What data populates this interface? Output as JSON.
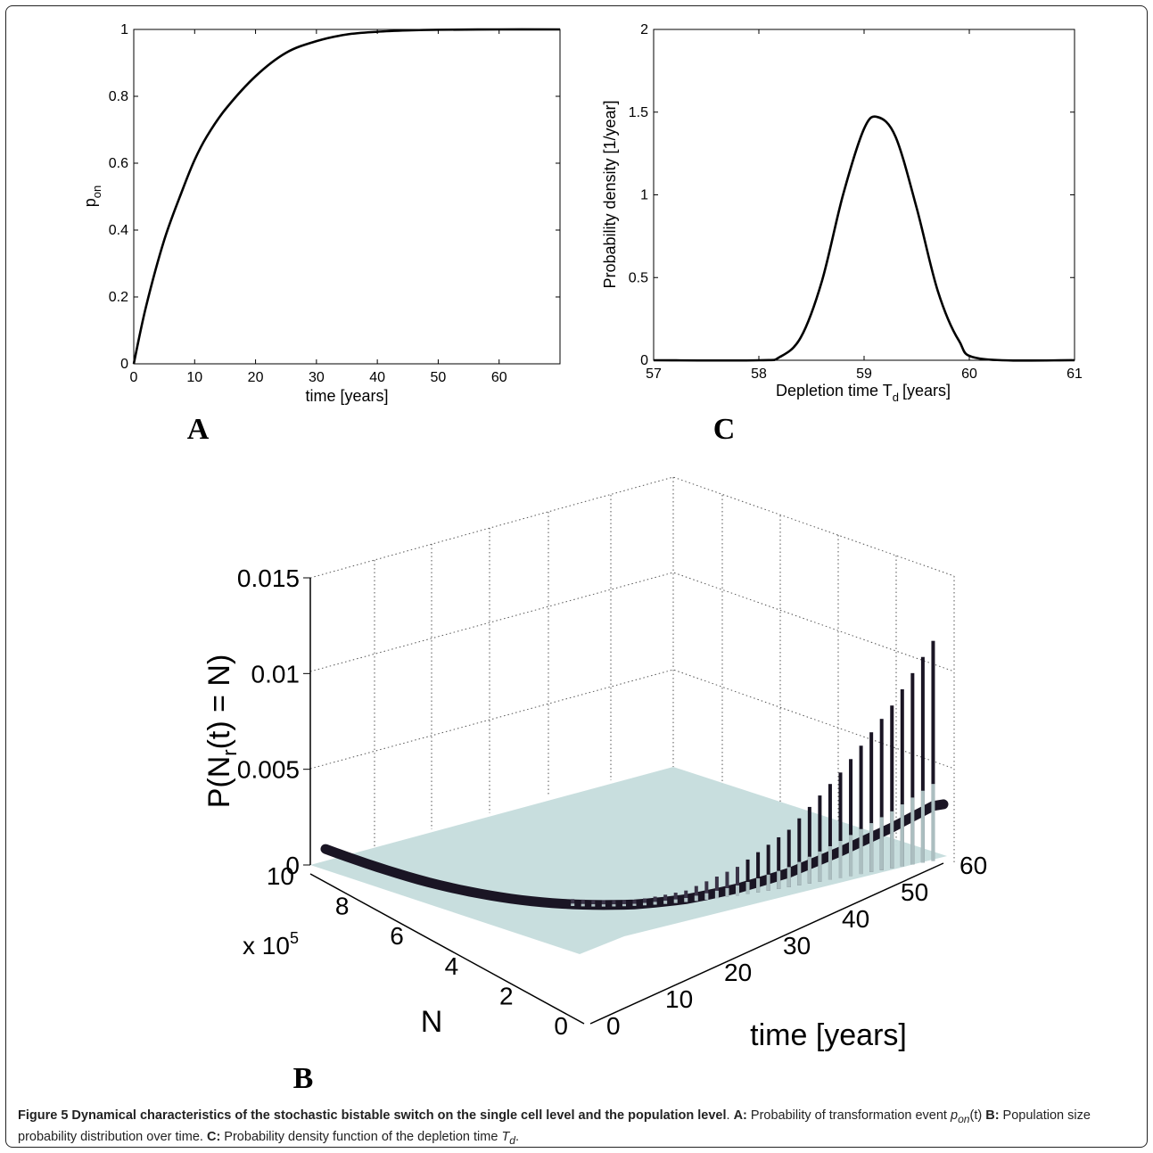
{
  "chart_data": [
    {
      "panel": "A",
      "type": "line",
      "xlabel": "time [years]",
      "ylabel": "p",
      "ylabel_sub": "on",
      "xlim": [
        0,
        70
      ],
      "ylim": [
        0,
        1
      ],
      "xticks": [
        "0",
        "10",
        "20",
        "30",
        "40",
        "50",
        "60"
      ],
      "yticks": [
        "0",
        "0.2",
        "0.4",
        "0.6",
        "0.8",
        "1"
      ],
      "series": [
        {
          "x": [
            0,
            2,
            5,
            8,
            10,
            12,
            15,
            20,
            25,
            30,
            35,
            40,
            45,
            50,
            60,
            70
          ],
          "y": [
            0,
            0.17,
            0.37,
            0.52,
            0.61,
            0.68,
            0.76,
            0.86,
            0.93,
            0.965,
            0.985,
            0.993,
            0.997,
            0.999,
            1.0,
            1.0
          ]
        }
      ]
    },
    {
      "panel": "C",
      "type": "line",
      "xlabel": "Depletion time T",
      "xlabel_sub": "d",
      "xlabel_unit": "[years]",
      "ylabel": "Probability density [1/year]",
      "xlim": [
        57,
        61
      ],
      "ylim": [
        0,
        2
      ],
      "xticks": [
        "57",
        "58",
        "59",
        "60",
        "61"
      ],
      "yticks": [
        "0",
        "0.5",
        "1",
        "1.5",
        "2"
      ],
      "series": [
        {
          "x": [
            57,
            58,
            58.2,
            58.4,
            58.6,
            58.8,
            59,
            59.13,
            59.3,
            59.5,
            59.7,
            59.9,
            60.1,
            61
          ],
          "y": [
            0,
            0,
            0.02,
            0.14,
            0.48,
            1.0,
            1.4,
            1.47,
            1.35,
            0.92,
            0.42,
            0.12,
            0.01,
            0
          ]
        }
      ]
    },
    {
      "panel": "B",
      "type": "bar",
      "zlabel": "P(N",
      "zlabel_sub": "r",
      "zlabel_rest": "(t) = N)",
      "ylabel": "N",
      "ymultiplier": "x 10",
      "ymultiplier_exp": "5",
      "xlabel": "time [years]",
      "zticks": [
        "0",
        "0.005",
        "0.01",
        "0.015"
      ],
      "yticks": [
        "0",
        "2",
        "4",
        "6",
        "8",
        "10"
      ],
      "xticks": [
        "0",
        "10",
        "20",
        "30",
        "40",
        "50",
        "60"
      ],
      "series": [
        {
          "name": "",
          "x": [
            0,
            10,
            20,
            30,
            35,
            40,
            45,
            50,
            55,
            59
          ],
          "y": [
            0.0011,
            0.0006,
            0.0004,
            0.0003,
            0.0006,
            0.0015,
            0.003,
            0.0055,
            0.0085,
            0.0115
          ]
        }
      ]
    }
  ],
  "panel_letters": {
    "a": "A",
    "b": "B",
    "c": "C"
  },
  "caption": {
    "title": "Figure 5 Dynamical characteristics of the stochastic bistable switch on the single cell level and the population level",
    "a_label": "A:",
    "a_text": " Probability of transformation event ",
    "a_sym": "p",
    "a_sym_sub": "on",
    "a_sym_rest": "(t)",
    "b_label": "B:",
    "b_text": " Population size probability distribution over time. ",
    "c_label": "C:",
    "c_text": " Probability density function of the depletion time ",
    "c_sym": "T",
    "c_sym_sub": "d",
    "c_end": "."
  },
  "colors": {
    "surface": "#c5dcdc",
    "dark_bar": "#1a1524",
    "line": "#000000"
  }
}
